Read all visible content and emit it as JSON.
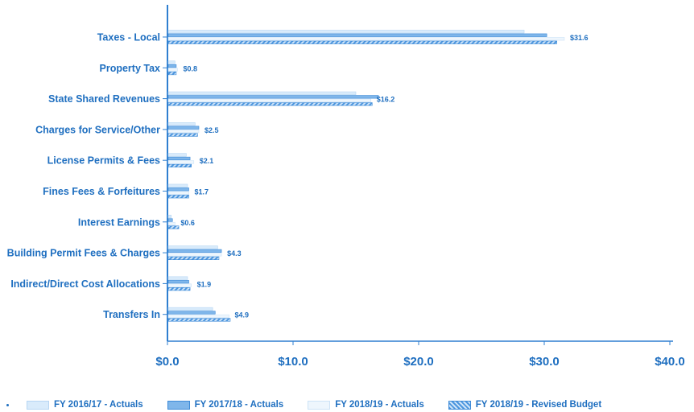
{
  "chart_data": {
    "type": "bar",
    "orientation": "horizontal",
    "categories": [
      "Taxes - Local",
      "Property Tax",
      "State Shared Revenues",
      "Charges for Service/Other",
      "License Permits & Fees",
      "Fines Fees & Forfeitures",
      "Interest Earnings",
      "Building Permit Fees & Charges",
      "Indirect/Direct Cost Allocations",
      "Transfers In"
    ],
    "series": [
      {
        "name": "FY 2016/17 - Actuals",
        "values": [
          28.4,
          0.6,
          15.0,
          2.2,
          1.5,
          1.6,
          0.3,
          4.0,
          1.6,
          3.6
        ]
      },
      {
        "name": "FY 2017/18 - Actuals",
        "values": [
          30.2,
          0.7,
          16.8,
          2.5,
          1.8,
          1.7,
          0.4,
          4.3,
          1.7,
          3.8
        ]
      },
      {
        "name": "FY 2018/19 - Actuals",
        "values": [
          31.6,
          0.8,
          16.2,
          2.5,
          2.1,
          1.7,
          0.6,
          4.3,
          1.9,
          4.9
        ]
      },
      {
        "name": "FY 2018/19 - Revised Budget",
        "values": [
          31.0,
          0.7,
          16.3,
          2.4,
          1.9,
          1.7,
          0.9,
          4.1,
          1.8,
          5.0
        ]
      }
    ],
    "data_labels": [
      "$31.6",
      "$0.8",
      "$16.2",
      "$2.5",
      "$2.1",
      "$1.7",
      "$0.6",
      "$4.3",
      "$1.9",
      "$4.9"
    ],
    "data_label_series": 2,
    "xlim": [
      0,
      40
    ],
    "xticks": [
      0,
      10,
      20,
      30,
      40
    ],
    "xtick_labels": [
      "$0.0",
      "$10.0",
      "$20.0",
      "$30.0",
      "$40.0"
    ],
    "legend": "bottom",
    "grid": false,
    "colors": {
      "text": "#1f6fc0",
      "axis": "#2f7fd0",
      "series_fill": [
        "#d9ebfb",
        "#7fb6ea",
        "#eef6fd",
        "#8bbde9"
      ],
      "series_stroke": [
        "#b7d6f3",
        "#3d8ad8",
        "#cde3f7",
        "#3d8ad8"
      ]
    }
  }
}
